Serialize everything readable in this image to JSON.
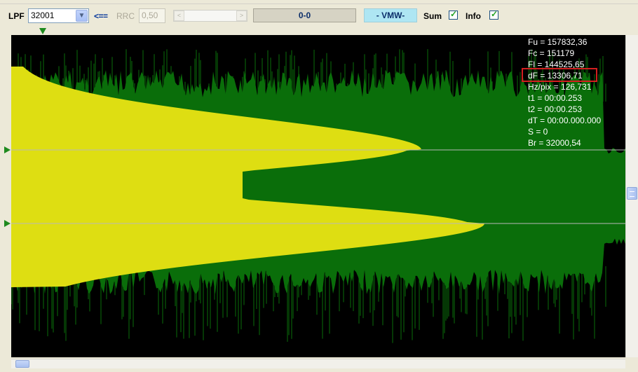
{
  "toolbar": {
    "lpf_label": "LPF",
    "lpf_value": "32001",
    "arrow_label": "<==",
    "rrc_label": "RRC",
    "rrc_value": "0,50",
    "counter": "0-0",
    "mode": "- VMW-",
    "sum_label": "Sum",
    "sum_checked": true,
    "info_label": "Info",
    "info_checked": true
  },
  "info": {
    "fu": "Fu = 157832,36",
    "fc": "Fc = 151179",
    "fl": "Fl = 144525,65",
    "df": "dF = 13306,71",
    "hzpix": "Hz/pix = 126,731",
    "t1": "t1 = 00:00.253",
    "t2": "t2 = 00:00.253",
    "dt": "dT = 00:00.000.000",
    "s": "S = 0",
    "br": "Br = 32000,54"
  },
  "colors": {
    "spectrum_green": "#0a6e0a",
    "spectrum_yellow": "#dede12",
    "background": "#000000",
    "highlight_box": "#d21f1f",
    "marker_green": "#1e8a1e"
  }
}
